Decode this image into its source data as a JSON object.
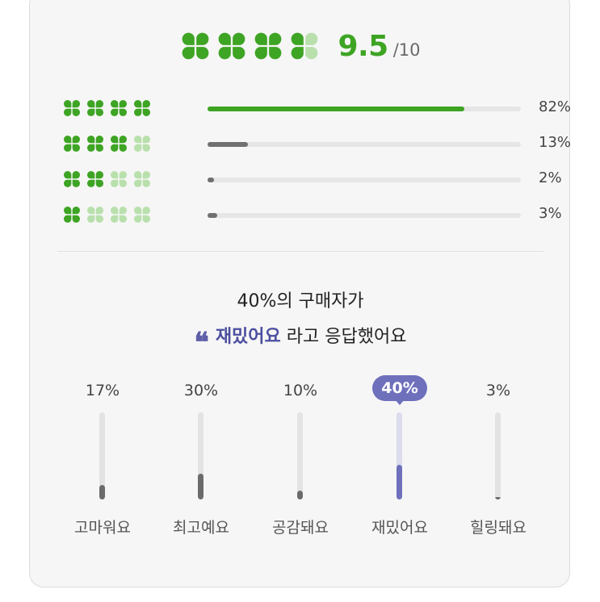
{
  "rating": {
    "score": "9.5",
    "max": "/10",
    "clover_icon": "four-leaf-clover-icon",
    "colors": {
      "active": "#3ea424",
      "inactive": "#b9e0ac"
    },
    "distribution": [
      {
        "clovers_filled": 4,
        "percent_label": "82%",
        "value": 0.82,
        "bar_color": "#3ea424"
      },
      {
        "clovers_filled": 3,
        "percent_label": "13%",
        "value": 0.13,
        "bar_color": "#707070"
      },
      {
        "clovers_filled": 2,
        "percent_label": "2%",
        "value": 0.02,
        "bar_color": "#707070"
      },
      {
        "clovers_filled": 1,
        "percent_label": "3%",
        "value": 0.03,
        "bar_color": "#707070"
      }
    ]
  },
  "summary": {
    "line1": "40%의 구매자가",
    "quote_mark": "❝",
    "highlight": "재밌어요",
    "suffix": "라고 응답했어요",
    "accent_color": "#4c4f9f"
  },
  "reactions": [
    {
      "label": "고마워요",
      "percent_label": "17%",
      "value": 0.17,
      "selected": false
    },
    {
      "label": "최고예요",
      "percent_label": "30%",
      "value": 0.3,
      "selected": false
    },
    {
      "label": "공감돼요",
      "percent_label": "10%",
      "value": 0.1,
      "selected": false
    },
    {
      "label": "재밌어요",
      "percent_label": "40%",
      "value": 0.4,
      "selected": true
    },
    {
      "label": "힐링돼요",
      "percent_label": "3%",
      "value": 0.03,
      "selected": false
    }
  ]
}
